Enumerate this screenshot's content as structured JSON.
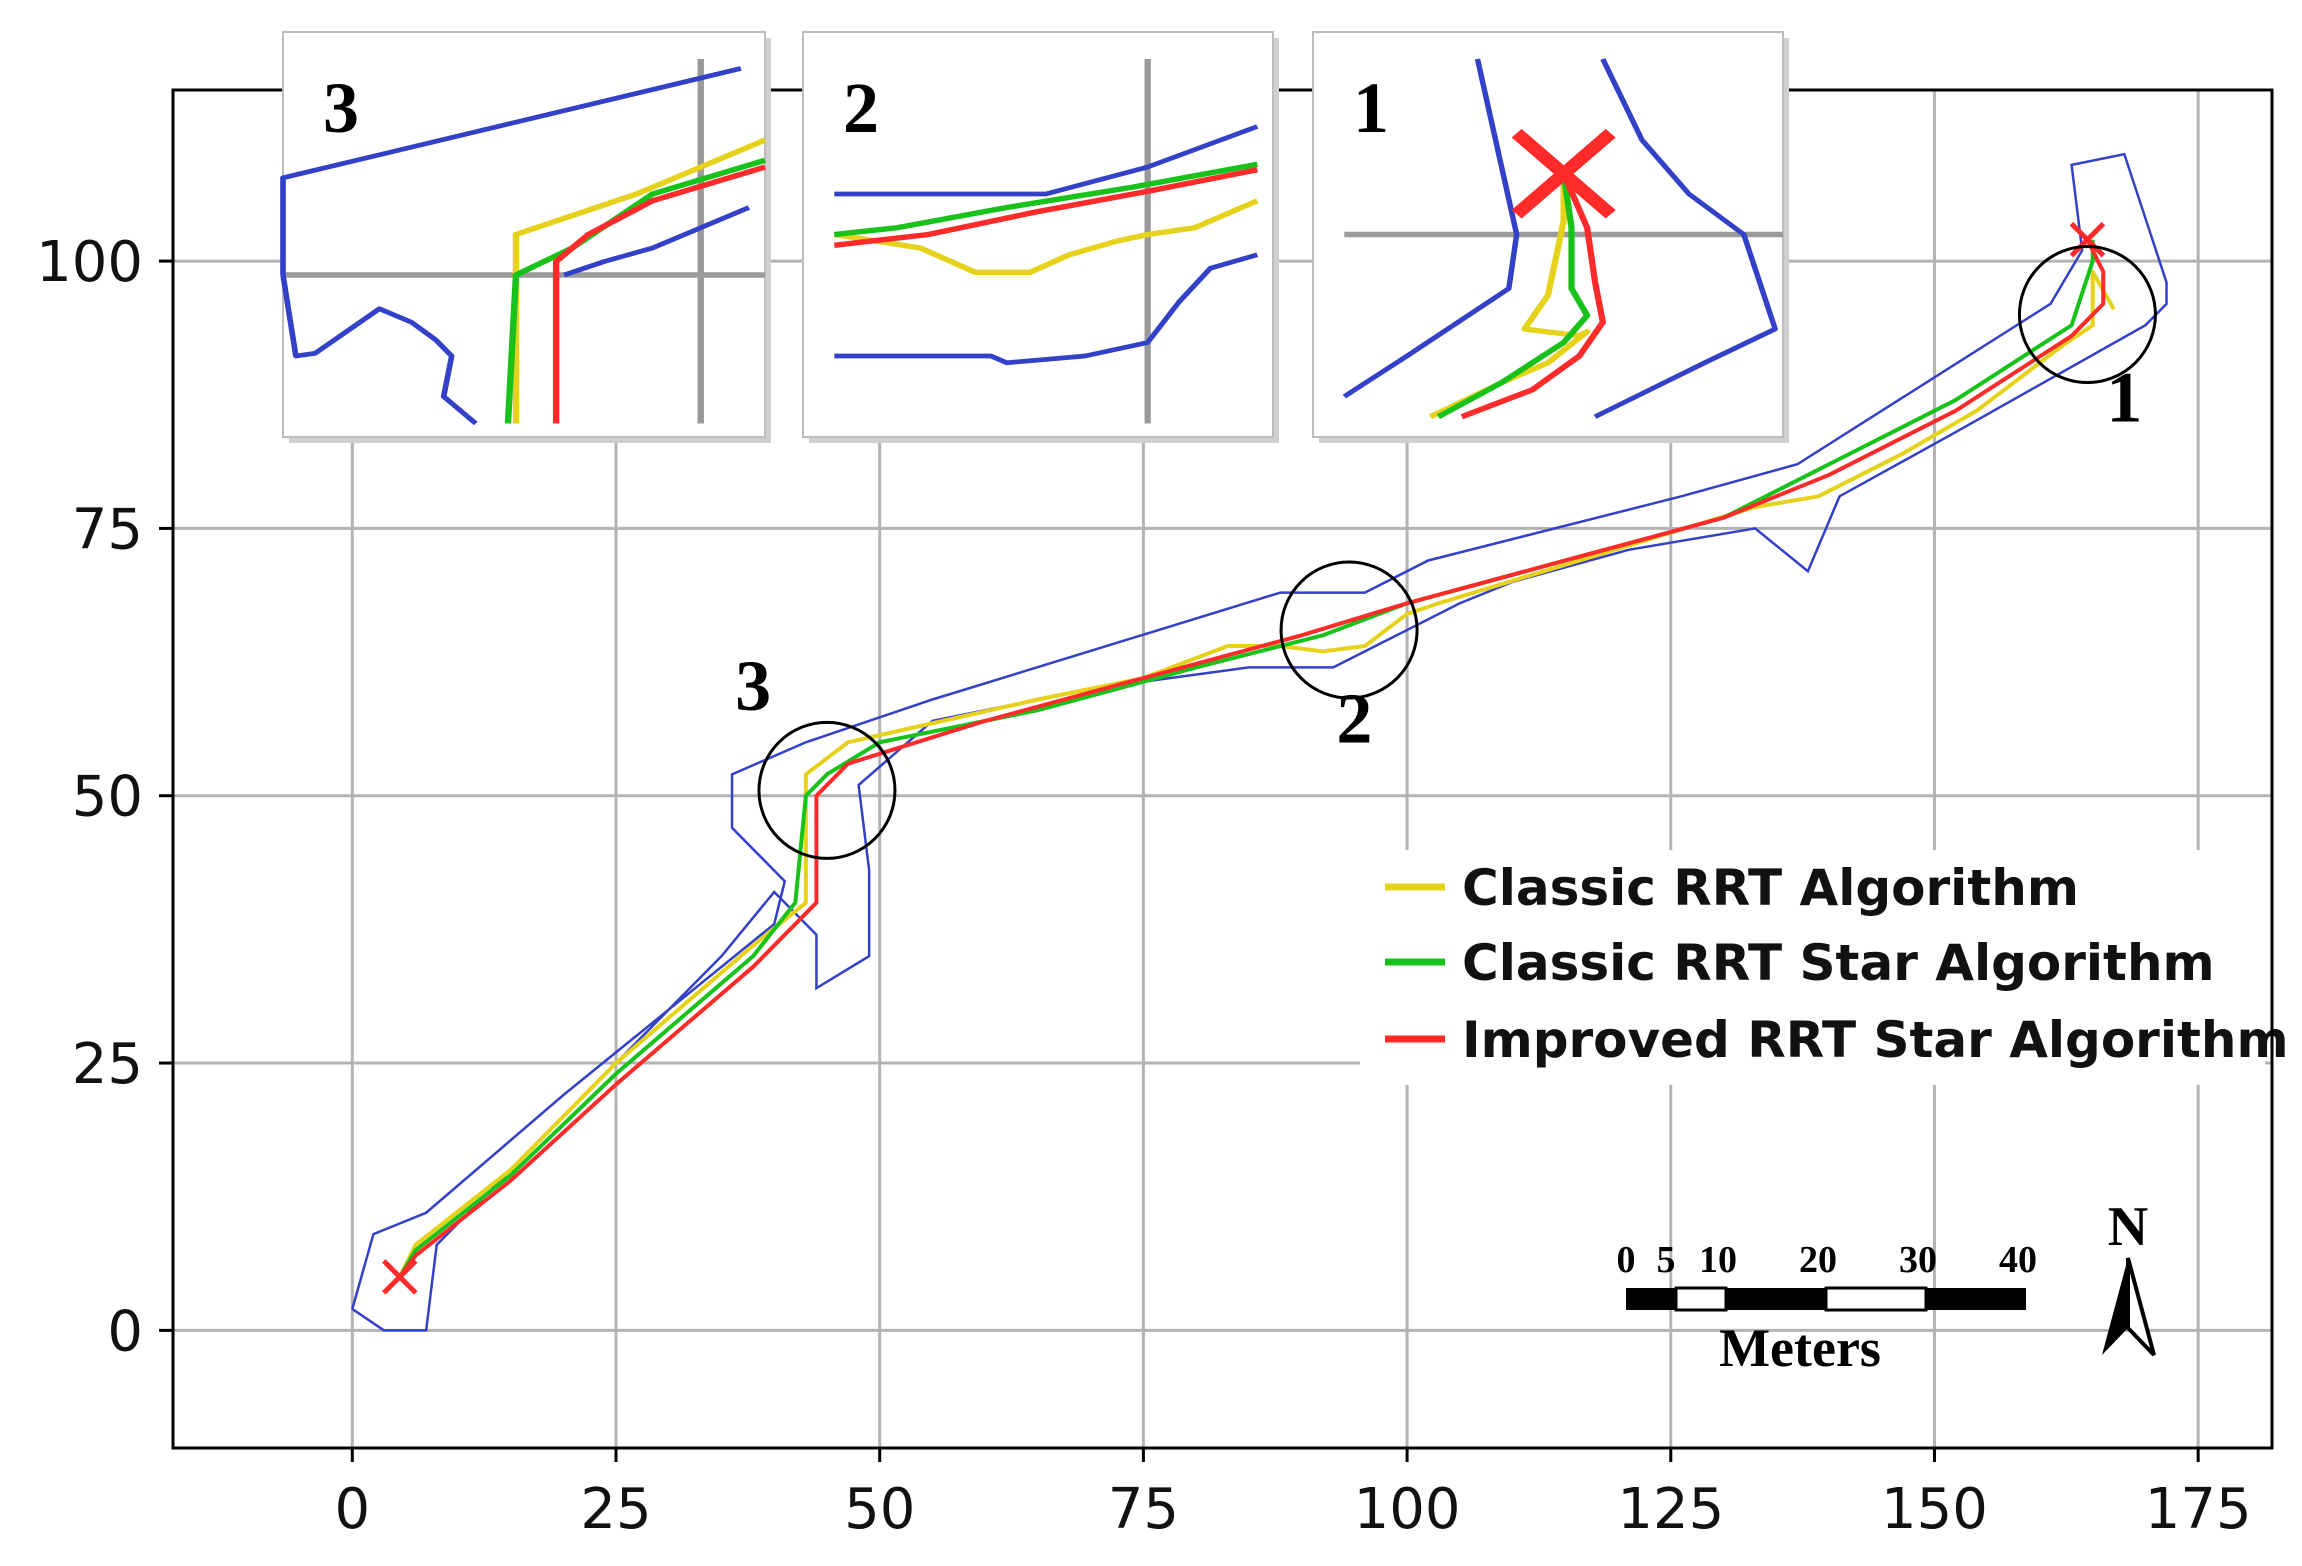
{
  "chart_data": {
    "type": "line",
    "xlim": [
      -17,
      182
    ],
    "ylim": [
      -11,
      116
    ],
    "x_ticks": [
      0,
      25,
      50,
      75,
      100,
      125,
      150,
      175
    ],
    "y_ticks": [
      0,
      25,
      50,
      75,
      100
    ],
    "grid": true,
    "legend_position": "center-right",
    "corridor": {
      "outer": [
        [
          0,
          2
        ],
        [
          2,
          9
        ],
        [
          7,
          11
        ],
        [
          20,
          22
        ],
        [
          40,
          38
        ],
        [
          41,
          42
        ],
        [
          36,
          47
        ],
        [
          36,
          52
        ],
        [
          43,
          55
        ],
        [
          55,
          59
        ],
        [
          88,
          69
        ],
        [
          96,
          69
        ],
        [
          102,
          72
        ],
        [
          126,
          78
        ],
        [
          137,
          81
        ],
        [
          161,
          96
        ],
        [
          164,
          101
        ],
        [
          163,
          109
        ],
        [
          168,
          110
        ],
        [
          172,
          98
        ],
        [
          172,
          96
        ],
        [
          170,
          94
        ],
        [
          152,
          84
        ],
        [
          141,
          78
        ],
        [
          138,
          71
        ],
        [
          133,
          75
        ],
        [
          121,
          73
        ],
        [
          110,
          70
        ],
        [
          105,
          68
        ],
        [
          93,
          62
        ],
        [
          85,
          62
        ],
        [
          70,
          60
        ],
        [
          55,
          57
        ],
        [
          48,
          51
        ],
        [
          49,
          43
        ],
        [
          49,
          35
        ],
        [
          44,
          32
        ],
        [
          44,
          37
        ],
        [
          40,
          41
        ],
        [
          35,
          35
        ],
        [
          10,
          10
        ],
        [
          8,
          8
        ],
        [
          7,
          0
        ],
        [
          3,
          0
        ],
        [
          0,
          2
        ]
      ]
    },
    "markers": [
      {
        "x": 4.5,
        "y": 5,
        "symbol": "cross",
        "color": "#ff2a2a"
      },
      {
        "x": 164.5,
        "y": 102,
        "symbol": "cross",
        "color": "#ff2a2a"
      }
    ],
    "circles": [
      {
        "label": "3",
        "x": 45,
        "y": 50.5,
        "label_x": 38,
        "label_y": 58
      },
      {
        "label": "2",
        "x": 94.5,
        "y": 65.5,
        "label_x": 95,
        "label_y": 55
      },
      {
        "label": "1",
        "x": 164.5,
        "y": 95,
        "label_x": 168,
        "label_y": 85
      }
    ],
    "series": [
      {
        "name": "Classic RRT Algorithm",
        "color": "#e6d21a",
        "points": [
          [
            4.5,
            5
          ],
          [
            6,
            8
          ],
          [
            15,
            15
          ],
          [
            25,
            25
          ],
          [
            38,
            36
          ],
          [
            43,
            40
          ],
          [
            43,
            52
          ],
          [
            47,
            55
          ],
          [
            56,
            57
          ],
          [
            65,
            59
          ],
          [
            75,
            61
          ],
          [
            83,
            64
          ],
          [
            88,
            64
          ],
          [
            92,
            63.5
          ],
          [
            96,
            64
          ],
          [
            100,
            67
          ],
          [
            103,
            68
          ],
          [
            113,
            71
          ],
          [
            123,
            74
          ],
          [
            133,
            77
          ],
          [
            139,
            78
          ],
          [
            147,
            82
          ],
          [
            154,
            86
          ],
          [
            162,
            92
          ],
          [
            165,
            94
          ],
          [
            165,
            99
          ],
          [
            167,
            95.5
          ]
        ]
      },
      {
        "name": "Classic RRT Star Algorithm",
        "color": "#18c21a",
        "points": [
          [
            4.5,
            5
          ],
          [
            6,
            7.5
          ],
          [
            15,
            14.5
          ],
          [
            25,
            24
          ],
          [
            38,
            35
          ],
          [
            42,
            40
          ],
          [
            43,
            50
          ],
          [
            45,
            52
          ],
          [
            50,
            55
          ],
          [
            65,
            58
          ],
          [
            80,
            62
          ],
          [
            92,
            65
          ],
          [
            100,
            68
          ],
          [
            115,
            72
          ],
          [
            130,
            76
          ],
          [
            140,
            81
          ],
          [
            152,
            87
          ],
          [
            163,
            94
          ],
          [
            165,
            100
          ],
          [
            165,
            102
          ]
        ]
      },
      {
        "name": "Improved RRT Star Algorithm",
        "color": "#ff2a2a",
        "points": [
          [
            4.5,
            5
          ],
          [
            6,
            7
          ],
          [
            15,
            14
          ],
          [
            25,
            23
          ],
          [
            38,
            34
          ],
          [
            44,
            40
          ],
          [
            44,
            50
          ],
          [
            47,
            53
          ],
          [
            60,
            57
          ],
          [
            75,
            61
          ],
          [
            90,
            65
          ],
          [
            100,
            68
          ],
          [
            115,
            72
          ],
          [
            130,
            76
          ],
          [
            140,
            80
          ],
          [
            152,
            86
          ],
          [
            163,
            93
          ],
          [
            166,
            96
          ],
          [
            166,
            99
          ],
          [
            164.5,
            102
          ]
        ]
      }
    ],
    "insets": [
      {
        "label": "3",
        "boundary_lines": [
          [
            [
              0,
              180
            ],
            [
              0,
              108
            ],
            [
              285,
              27
            ]
          ],
          [
            [
              0,
              180
            ],
            [
              8,
              240
            ],
            [
              20,
              238
            ],
            [
              60,
              205
            ],
            [
              80,
              215
            ],
            [
              95,
              228
            ],
            [
              105,
              240
            ],
            [
              100,
              270
            ],
            [
              120,
              290
            ]
          ],
          [
            [
              175,
              180
            ],
            [
              200,
              170
            ],
            [
              230,
              160
            ],
            [
              290,
              130
            ]
          ]
        ],
        "grid_lines": [
          [
            [
              0,
              180
            ],
            [
              300,
              180
            ]
          ],
          [
            [
              260,
              20
            ],
            [
              260,
              290
            ]
          ]
        ],
        "paths": [
          {
            "color": "#e6d21a",
            "points": [
              [
                145,
                290
              ],
              [
                145,
                150
              ],
              [
                220,
                120
              ],
              [
                240,
                110
              ],
              [
                300,
                80
              ]
            ]
          },
          {
            "color": "#18c21a",
            "points": [
              [
                140,
                290
              ],
              [
                145,
                180
              ],
              [
                180,
                160
              ],
              [
                230,
                120
              ],
              [
                300,
                95
              ]
            ]
          },
          {
            "color": "#ff2a2a",
            "points": [
              [
                170,
                290
              ],
              [
                170,
                170
              ],
              [
                190,
                150
              ],
              [
                230,
                125
              ],
              [
                300,
                100
              ]
            ]
          }
        ]
      },
      {
        "label": "2",
        "boundary_lines": [
          [
            [
              20,
              120
            ],
            [
              155,
              120
            ],
            [
              220,
              100
            ],
            [
              290,
              70
            ]
          ],
          [
            [
              20,
              240
            ],
            [
              120,
              240
            ],
            [
              130,
              245
            ],
            [
              180,
              240
            ],
            [
              220,
              230
            ],
            [
              240,
              200
            ],
            [
              260,
              175
            ],
            [
              290,
              165
            ]
          ]
        ],
        "grid_lines": [
          [
            [
              220,
              20
            ],
            [
              220,
              290
            ]
          ]
        ],
        "paths": [
          {
            "color": "#e6d21a",
            "points": [
              [
                20,
                150
              ],
              [
                75,
                160
              ],
              [
                110,
                178
              ],
              [
                145,
                178
              ],
              [
                170,
                165
              ],
              [
                200,
                155
              ],
              [
                220,
                150
              ],
              [
                250,
                145
              ],
              [
                290,
                125
              ]
            ]
          },
          {
            "color": "#18c21a",
            "points": [
              [
                20,
                150
              ],
              [
                60,
                145
              ],
              [
                130,
                130
              ],
              [
                210,
                115
              ],
              [
                290,
                98
              ]
            ]
          },
          {
            "color": "#ff2a2a",
            "points": [
              [
                20,
                158
              ],
              [
                80,
                150
              ],
              [
                150,
                133
              ],
              [
                220,
                118
              ],
              [
                290,
                102
              ]
            ]
          }
        ]
      },
      {
        "label": "1",
        "boundary_lines": [
          [
            [
              105,
              20
            ],
            [
              130,
              150
            ],
            [
              125,
              190
            ],
            [
              60,
              240
            ],
            [
              20,
              270
            ]
          ],
          [
            [
              185,
              20
            ],
            [
              210,
              80
            ],
            [
              240,
              120
            ],
            [
              275,
              150
            ],
            [
              295,
              220
            ],
            [
              250,
              245
            ],
            [
              180,
              285
            ]
          ]
        ],
        "grid_lines": [
          [
            [
              20,
              150
            ],
            [
              300,
              150
            ]
          ]
        ],
        "paths": [
          {
            "color": "#e6d21a",
            "points": [
              [
                75,
                285
              ],
              [
                120,
                260
              ],
              [
                150,
                245
              ],
              [
                175,
                222
              ],
              [
                170,
                225
              ],
              [
                135,
                220
              ],
              [
                150,
                195
              ],
              [
                160,
                140
              ],
              [
                160,
                100
              ]
            ]
          },
          {
            "color": "#18c21a",
            "points": [
              [
                80,
                285
              ],
              [
                120,
                260
              ],
              [
                160,
                230
              ],
              [
                175,
                210
              ],
              [
                165,
                190
              ],
              [
                165,
                145
              ],
              [
                160,
                105
              ]
            ]
          },
          {
            "color": "#ff2a2a",
            "points": [
              [
                95,
                285
              ],
              [
                140,
                265
              ],
              [
                170,
                240
              ],
              [
                185,
                215
              ],
              [
                180,
                185
              ],
              [
                175,
                145
              ],
              [
                160,
                105
              ]
            ]
          }
        ]
      }
    ]
  },
  "scale_bar": {
    "labels": [
      "0",
      "5",
      "10",
      "20",
      "30",
      "40"
    ],
    "unit": "Meters"
  },
  "north_arrow": {
    "label": "N"
  },
  "colors": {
    "axis": "#000000",
    "grid": "#b3b3b3",
    "corridor": "#3340c8",
    "circle": "#000000"
  }
}
